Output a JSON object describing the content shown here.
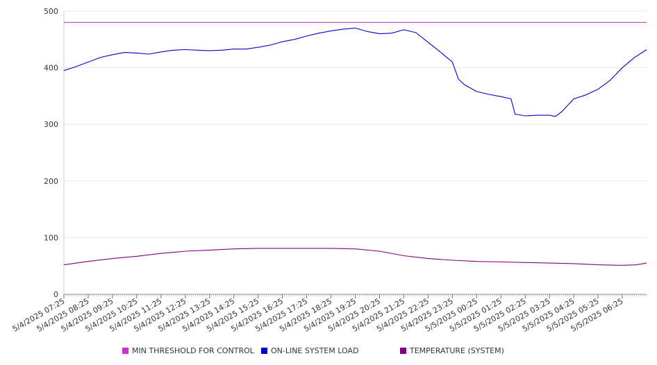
{
  "chart_data": {
    "type": "line",
    "title": "",
    "xlabel": "",
    "ylabel": "",
    "ylim": [
      0,
      500
    ],
    "y_ticks": [
      0,
      100,
      200,
      300,
      400,
      500
    ],
    "grid": true,
    "legend_position": "bottom",
    "x_start": "5/4/2025 07:25",
    "x_end": "5/5/2025 07:25",
    "x_ticks": [
      "5/4/2025 07:25",
      "5/4/2025 08:25",
      "5/4/2025 09:25",
      "5/4/2025 10:25",
      "5/4/2025 11:25",
      "5/4/2025 12:25",
      "5/4/2025 13:25",
      "5/4/2025 14:25",
      "5/4/2025 15:25",
      "5/4/2025 16:25",
      "5/4/2025 17:25",
      "5/4/2025 18:25",
      "5/4/2025 19:25",
      "5/4/2025 20:25",
      "5/4/2025 21:25",
      "5/4/2025 22:25",
      "5/4/2025 23:25",
      "5/5/2025 00:25",
      "5/5/2025 01:25",
      "5/5/2025 02:25",
      "5/5/2025 03:25",
      "5/5/2025 04:25",
      "5/5/2025 05:25",
      "5/5/2025 06:25"
    ],
    "series": [
      {
        "name": "MIN THRESHOLD FOR CONTROL",
        "color": "#cc33cc",
        "points": [
          [
            "5/4/2025 07:25",
            480
          ],
          [
            "5/5/2025 07:25",
            480
          ]
        ]
      },
      {
        "name": "ON-LINE SYSTEM LOAD",
        "color": "#0000cc",
        "points": [
          [
            "5/4/2025 07:25",
            395
          ],
          [
            "5/4/2025 07:55",
            402
          ],
          [
            "5/4/2025 08:25",
            410
          ],
          [
            "5/4/2025 08:55",
            418
          ],
          [
            "5/4/2025 09:25",
            423
          ],
          [
            "5/4/2025 09:55",
            427
          ],
          [
            "5/4/2025 10:25",
            426
          ],
          [
            "5/4/2025 10:55",
            424
          ],
          [
            "5/4/2025 11:25",
            428
          ],
          [
            "5/4/2025 11:55",
            431
          ],
          [
            "5/4/2025 12:25",
            432
          ],
          [
            "5/4/2025 12:55",
            431
          ],
          [
            "5/4/2025 13:25",
            430
          ],
          [
            "5/4/2025 13:55",
            431
          ],
          [
            "5/4/2025 14:25",
            433
          ],
          [
            "5/4/2025 14:55",
            433
          ],
          [
            "5/4/2025 15:25",
            436
          ],
          [
            "5/4/2025 15:55",
            440
          ],
          [
            "5/4/2025 16:25",
            446
          ],
          [
            "5/4/2025 16:55",
            450
          ],
          [
            "5/4/2025 17:25",
            456
          ],
          [
            "5/4/2025 17:55",
            461
          ],
          [
            "5/4/2025 18:25",
            465
          ],
          [
            "5/4/2025 18:55",
            468
          ],
          [
            "5/4/2025 19:25",
            470
          ],
          [
            "5/4/2025 19:55",
            464
          ],
          [
            "5/4/2025 20:25",
            460
          ],
          [
            "5/4/2025 20:55",
            461
          ],
          [
            "5/4/2025 21:25",
            467
          ],
          [
            "5/4/2025 21:55",
            462
          ],
          [
            "5/4/2025 22:25",
            445
          ],
          [
            "5/4/2025 22:55",
            428
          ],
          [
            "5/4/2025 23:25",
            410
          ],
          [
            "5/4/2025 23:40",
            380
          ],
          [
            "5/4/2025 23:55",
            370
          ],
          [
            "5/5/2025 00:25",
            358
          ],
          [
            "5/5/2025 00:55",
            353
          ],
          [
            "5/5/2025 01:25",
            349
          ],
          [
            "5/5/2025 01:50",
            345
          ],
          [
            "5/5/2025 02:00",
            318
          ],
          [
            "5/5/2025 02:25",
            315
          ],
          [
            "5/5/2025 02:55",
            316
          ],
          [
            "5/5/2025 03:25",
            316
          ],
          [
            "5/5/2025 03:40",
            314
          ],
          [
            "5/5/2025 03:55",
            322
          ],
          [
            "5/5/2025 04:25",
            345
          ],
          [
            "5/5/2025 04:55",
            352
          ],
          [
            "5/5/2025 05:25",
            362
          ],
          [
            "5/5/2025 05:55",
            378
          ],
          [
            "5/5/2025 06:25",
            400
          ],
          [
            "5/5/2025 06:55",
            418
          ],
          [
            "5/5/2025 07:25",
            432
          ]
        ]
      },
      {
        "name": "TEMPERATURE (SYSTEM)",
        "color": "#800080",
        "points": [
          [
            "5/4/2025 07:25",
            52
          ],
          [
            "5/4/2025 08:25",
            58
          ],
          [
            "5/4/2025 09:25",
            63
          ],
          [
            "5/4/2025 10:25",
            67
          ],
          [
            "5/4/2025 11:25",
            72
          ],
          [
            "5/4/2025 12:25",
            76
          ],
          [
            "5/4/2025 13:25",
            78
          ],
          [
            "5/4/2025 14:25",
            80
          ],
          [
            "5/4/2025 15:25",
            81
          ],
          [
            "5/4/2025 16:25",
            81
          ],
          [
            "5/4/2025 17:25",
            81
          ],
          [
            "5/4/2025 18:25",
            81
          ],
          [
            "5/4/2025 19:25",
            80
          ],
          [
            "5/4/2025 20:25",
            76
          ],
          [
            "5/4/2025 21:25",
            68
          ],
          [
            "5/4/2025 22:25",
            63
          ],
          [
            "5/4/2025 23:25",
            60
          ],
          [
            "5/5/2025 00:25",
            58
          ],
          [
            "5/5/2025 01:25",
            57
          ],
          [
            "5/5/2025 02:25",
            56
          ],
          [
            "5/5/2025 03:25",
            55
          ],
          [
            "5/5/2025 04:25",
            54
          ],
          [
            "5/5/2025 05:25",
            52
          ],
          [
            "5/5/2025 06:25",
            51
          ],
          [
            "5/5/2025 07:00",
            52
          ],
          [
            "5/5/2025 07:25",
            55
          ]
        ]
      }
    ]
  }
}
